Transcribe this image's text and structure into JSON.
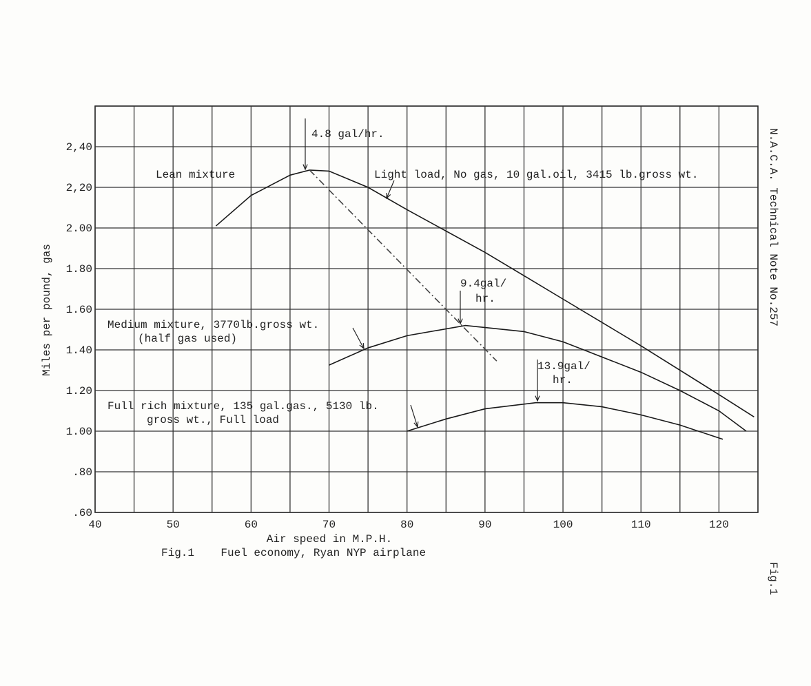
{
  "chart_data": {
    "type": "line",
    "caption": "Fig.1    Fuel economy, Ryan NYP airplane",
    "xlabel": "Air speed in M.P.H.",
    "ylabel": "Miles per pound, gas",
    "side_note": "N.A.C.A. Technical Note No.257",
    "page_label": "Fig.1",
    "xlim": [
      40,
      125
    ],
    "ylim": [
      0.6,
      2.6
    ],
    "xticks": [
      40,
      50,
      60,
      70,
      80,
      90,
      100,
      110,
      120
    ],
    "yticks": [
      {
        "value": 0.6,
        "label": ".60"
      },
      {
        "value": 0.8,
        "label": ".80"
      },
      {
        "value": 1.0,
        "label": "1.00"
      },
      {
        "value": 1.2,
        "label": "1.20"
      },
      {
        "value": 1.4,
        "label": "1.40"
      },
      {
        "value": 1.6,
        "label": "1.60"
      },
      {
        "value": 1.8,
        "label": "1.80"
      },
      {
        "value": 2.0,
        "label": "2.00"
      },
      {
        "value": 2.2,
        "label": "2,20"
      },
      {
        "value": 2.4,
        "label": "2,40"
      }
    ],
    "grid": true,
    "x_minor_grid": true,
    "series": [
      {
        "color": "#1a1a1a",
        "x": [
          55.5,
          60,
          65,
          67.5,
          70,
          75,
          80,
          90,
          100,
          110,
          120,
          124.5
        ],
        "values": [
          2.01,
          2.16,
          2.26,
          2.285,
          2.28,
          2.2,
          2.09,
          1.88,
          1.65,
          1.42,
          1.18,
          1.07
        ]
      },
      {
        "color": "#1a1a1a",
        "x": [
          70,
          75,
          80,
          87.5,
          95,
          100,
          110,
          115,
          120,
          123.5
        ],
        "values": [
          1.325,
          1.41,
          1.47,
          1.52,
          1.49,
          1.44,
          1.29,
          1.2,
          1.1,
          1.0
        ]
      },
      {
        "color": "#1a1a1a",
        "x": [
          80,
          85,
          90,
          96.5,
          100,
          105,
          110,
          115,
          120.5
        ],
        "values": [
          1.0,
          1.06,
          1.11,
          1.14,
          1.14,
          1.12,
          1.08,
          1.03,
          0.96
        ]
      },
      {
        "color": "#444444",
        "dashed": true,
        "x": [
          67.5,
          91.5
        ],
        "values": [
          2.285,
          1.345
        ]
      }
    ],
    "annotations": [
      "Lean mixture",
      "4.8 gal/hr.",
      "Light load, No gas, 10 gal.oil, 3415 lb.gross wt.",
      "9.4gal/",
      "hr.",
      "Medium mixture, 3770lb.gross wt.",
      "(half gas used)",
      "13.9gal/",
      "hr.",
      "Full rich mixture, 135 gal.gas., 5130 lb.",
      "gross wt., Full load"
    ]
  }
}
